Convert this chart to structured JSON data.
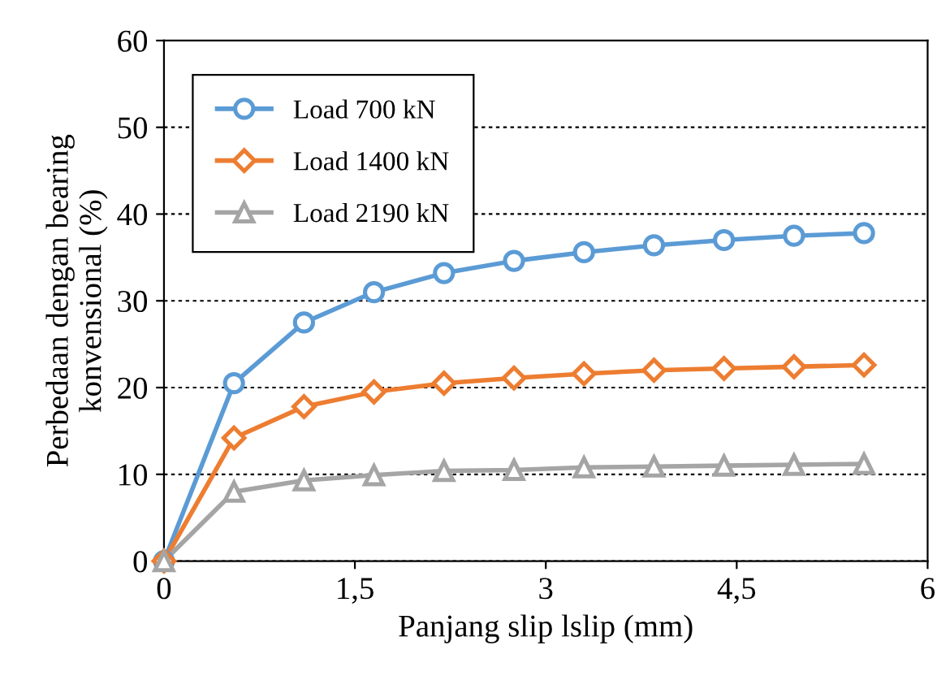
{
  "chart_data": {
    "type": "line",
    "xlabel": "Panjang slip lslip (mm)",
    "ylabel": "Perbedaan dengan bearing\nkonvensional (%)",
    "x": [
      0,
      0.55,
      1.1,
      1.65,
      2.2,
      2.75,
      3.3,
      3.85,
      4.4,
      4.95,
      5.5
    ],
    "series": [
      {
        "name": "Load 700 kN",
        "color": "#5b9bd5",
        "marker": "circle",
        "values": [
          0,
          20.5,
          27.5,
          31,
          33.2,
          34.6,
          35.6,
          36.4,
          37,
          37.5,
          37.8
        ]
      },
      {
        "name": "Load 1400 kN",
        "color": "#ed7d31",
        "marker": "diamond",
        "values": [
          0,
          14.2,
          17.8,
          19.5,
          20.5,
          21.1,
          21.6,
          22,
          22.2,
          22.4,
          22.6
        ]
      },
      {
        "name": "Load 2190 kN",
        "color": "#a5a5a5",
        "marker": "triangle",
        "values": [
          0,
          8,
          9.3,
          9.9,
          10.4,
          10.5,
          10.8,
          10.9,
          11,
          11.1,
          11.2
        ]
      }
    ],
    "xlim": [
      0,
      6
    ],
    "xticks": [
      0,
      {
        "value": 1.5,
        "label": "1,5"
      },
      3,
      {
        "value": 4.5,
        "label": "4,5"
      },
      6
    ],
    "ylim": [
      0,
      60
    ],
    "yticks": [
      0,
      10,
      20,
      30,
      40,
      50,
      60
    ],
    "grid": "y",
    "legend": "top left",
    "line_style": "solid"
  }
}
